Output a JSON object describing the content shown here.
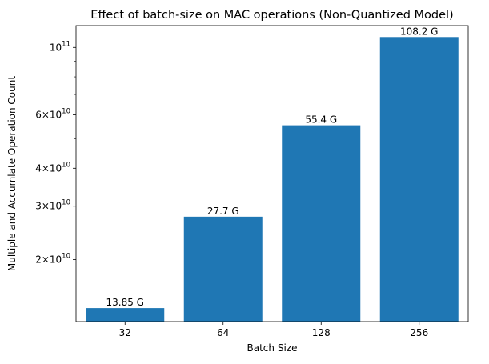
{
  "chart_data": {
    "type": "bar",
    "title": "Effect of batch-size on MAC operations (Non-Quantized Model)",
    "xlabel": "Batch Size",
    "ylabel": "Multiple and Accumlate Operation Count",
    "yscale": "log",
    "ylim": [
      12500000000,
      118000000000
    ],
    "categories": [
      "32",
      "64",
      "128",
      "256"
    ],
    "values": [
      13850000000,
      27700000000,
      55400000000,
      108200000000
    ],
    "bar_labels": [
      "13.85 G",
      "27.7 G",
      "55.4 G",
      "108.2 G"
    ],
    "y_major_ticks": [
      {
        "value": 20000000000,
        "mantissa": "2",
        "base": "10",
        "exp": "10"
      },
      {
        "value": 30000000000,
        "mantissa": "3",
        "base": "10",
        "exp": "10"
      },
      {
        "value": 40000000000,
        "mantissa": "4",
        "base": "10",
        "exp": "10"
      },
      {
        "value": 60000000000,
        "mantissa": "6",
        "base": "10",
        "exp": "10"
      },
      {
        "value": 100000000000,
        "mantissa": "",
        "base": "10",
        "exp": "11"
      }
    ],
    "y_minor_ticks": [
      50000000000,
      70000000000,
      80000000000,
      90000000000
    ],
    "bar_color": "#1f77b4",
    "grid": false,
    "legend": "none"
  }
}
